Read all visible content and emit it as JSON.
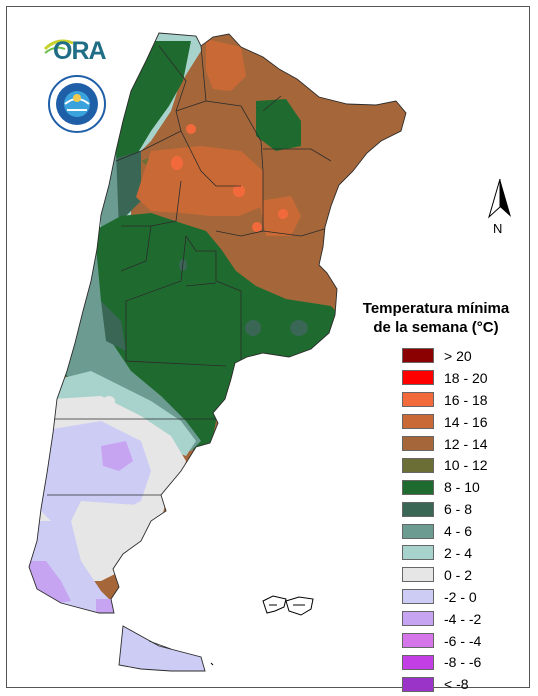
{
  "logos": {
    "ora": {
      "text": "ORA",
      "icon": "ora-logo"
    },
    "smn": {
      "icon": "smn-seal"
    }
  },
  "north_arrow": {
    "label": "N",
    "icon": "north-arrow-icon"
  },
  "legend": {
    "title_line1": "Temperatura mínima",
    "title_line2": "de la semana (°C)",
    "items": [
      {
        "label": "> 20",
        "color": "#8b0000"
      },
      {
        "label": "18 - 20",
        "color": "#ff0000"
      },
      {
        "label": "16 - 18",
        "color": "#f26a3c"
      },
      {
        "label": "14 - 16",
        "color": "#c96a36"
      },
      {
        "label": "12 - 14",
        "color": "#a5673a"
      },
      {
        "label": "10 - 12",
        "color": "#6b6e35"
      },
      {
        "label": "8 - 10",
        "color": "#1f6b2f"
      },
      {
        "label": "6 - 8",
        "color": "#3a6655"
      },
      {
        "label": "4 - 6",
        "color": "#6b9b91"
      },
      {
        "label": "2 - 4",
        "color": "#a8d3cc"
      },
      {
        "label": "0 - 2",
        "color": "#e6e6e6"
      },
      {
        "label": "-2 - 0",
        "color": "#ccccf5"
      },
      {
        "label": "-4 - -2",
        "color": "#c7a4f2"
      },
      {
        "label": "-6 - -4",
        "color": "#d575ea"
      },
      {
        "label": "-8 - -6",
        "color": "#c43ee6"
      },
      {
        "label": "< -8",
        "color": "#9a34c9"
      }
    ]
  }
}
